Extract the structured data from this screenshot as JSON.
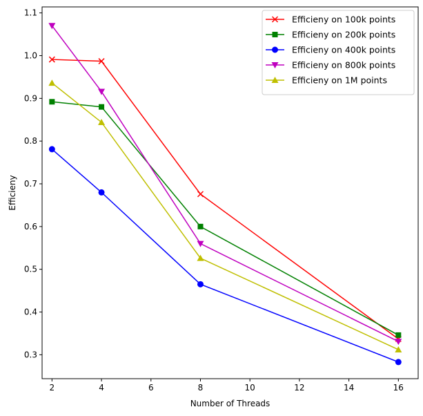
{
  "chart_data": {
    "type": "line",
    "title": "",
    "xlabel": "Number of Threads",
    "ylabel": "Efficieny",
    "x": [
      2,
      4,
      8,
      16
    ],
    "xlim": [
      1.6,
      16.8
    ],
    "ylim": [
      0.244,
      1.114
    ],
    "xticks": [
      2,
      4,
      6,
      8,
      10,
      12,
      14,
      16
    ],
    "yticks": [
      0.3,
      0.4,
      0.5,
      0.6,
      0.7,
      0.8,
      0.9,
      1.0,
      1.1
    ],
    "legend_position": "top-right",
    "grid": false,
    "series": [
      {
        "name": "Efficieny on 100k points",
        "color": "#ff0000",
        "marker": "x",
        "values": [
          0.991,
          0.987,
          0.676,
          0.337
        ]
      },
      {
        "name": "Efficieny on 200k points",
        "color": "#008000",
        "marker": "square",
        "values": [
          0.892,
          0.88,
          0.6,
          0.346
        ]
      },
      {
        "name": "Efficieny on 400k points",
        "color": "#0000ff",
        "marker": "circle",
        "values": [
          0.781,
          0.68,
          0.465,
          0.283
        ]
      },
      {
        "name": "Efficieny on 800k points",
        "color": "#bf00bf",
        "marker": "triangle-down",
        "values": [
          1.07,
          0.916,
          0.56,
          0.331
        ]
      },
      {
        "name": "Efficieny on 1M points",
        "color": "#bfbf00",
        "marker": "triangle-up",
        "values": [
          0.936,
          0.844,
          0.526,
          0.312
        ]
      }
    ]
  }
}
